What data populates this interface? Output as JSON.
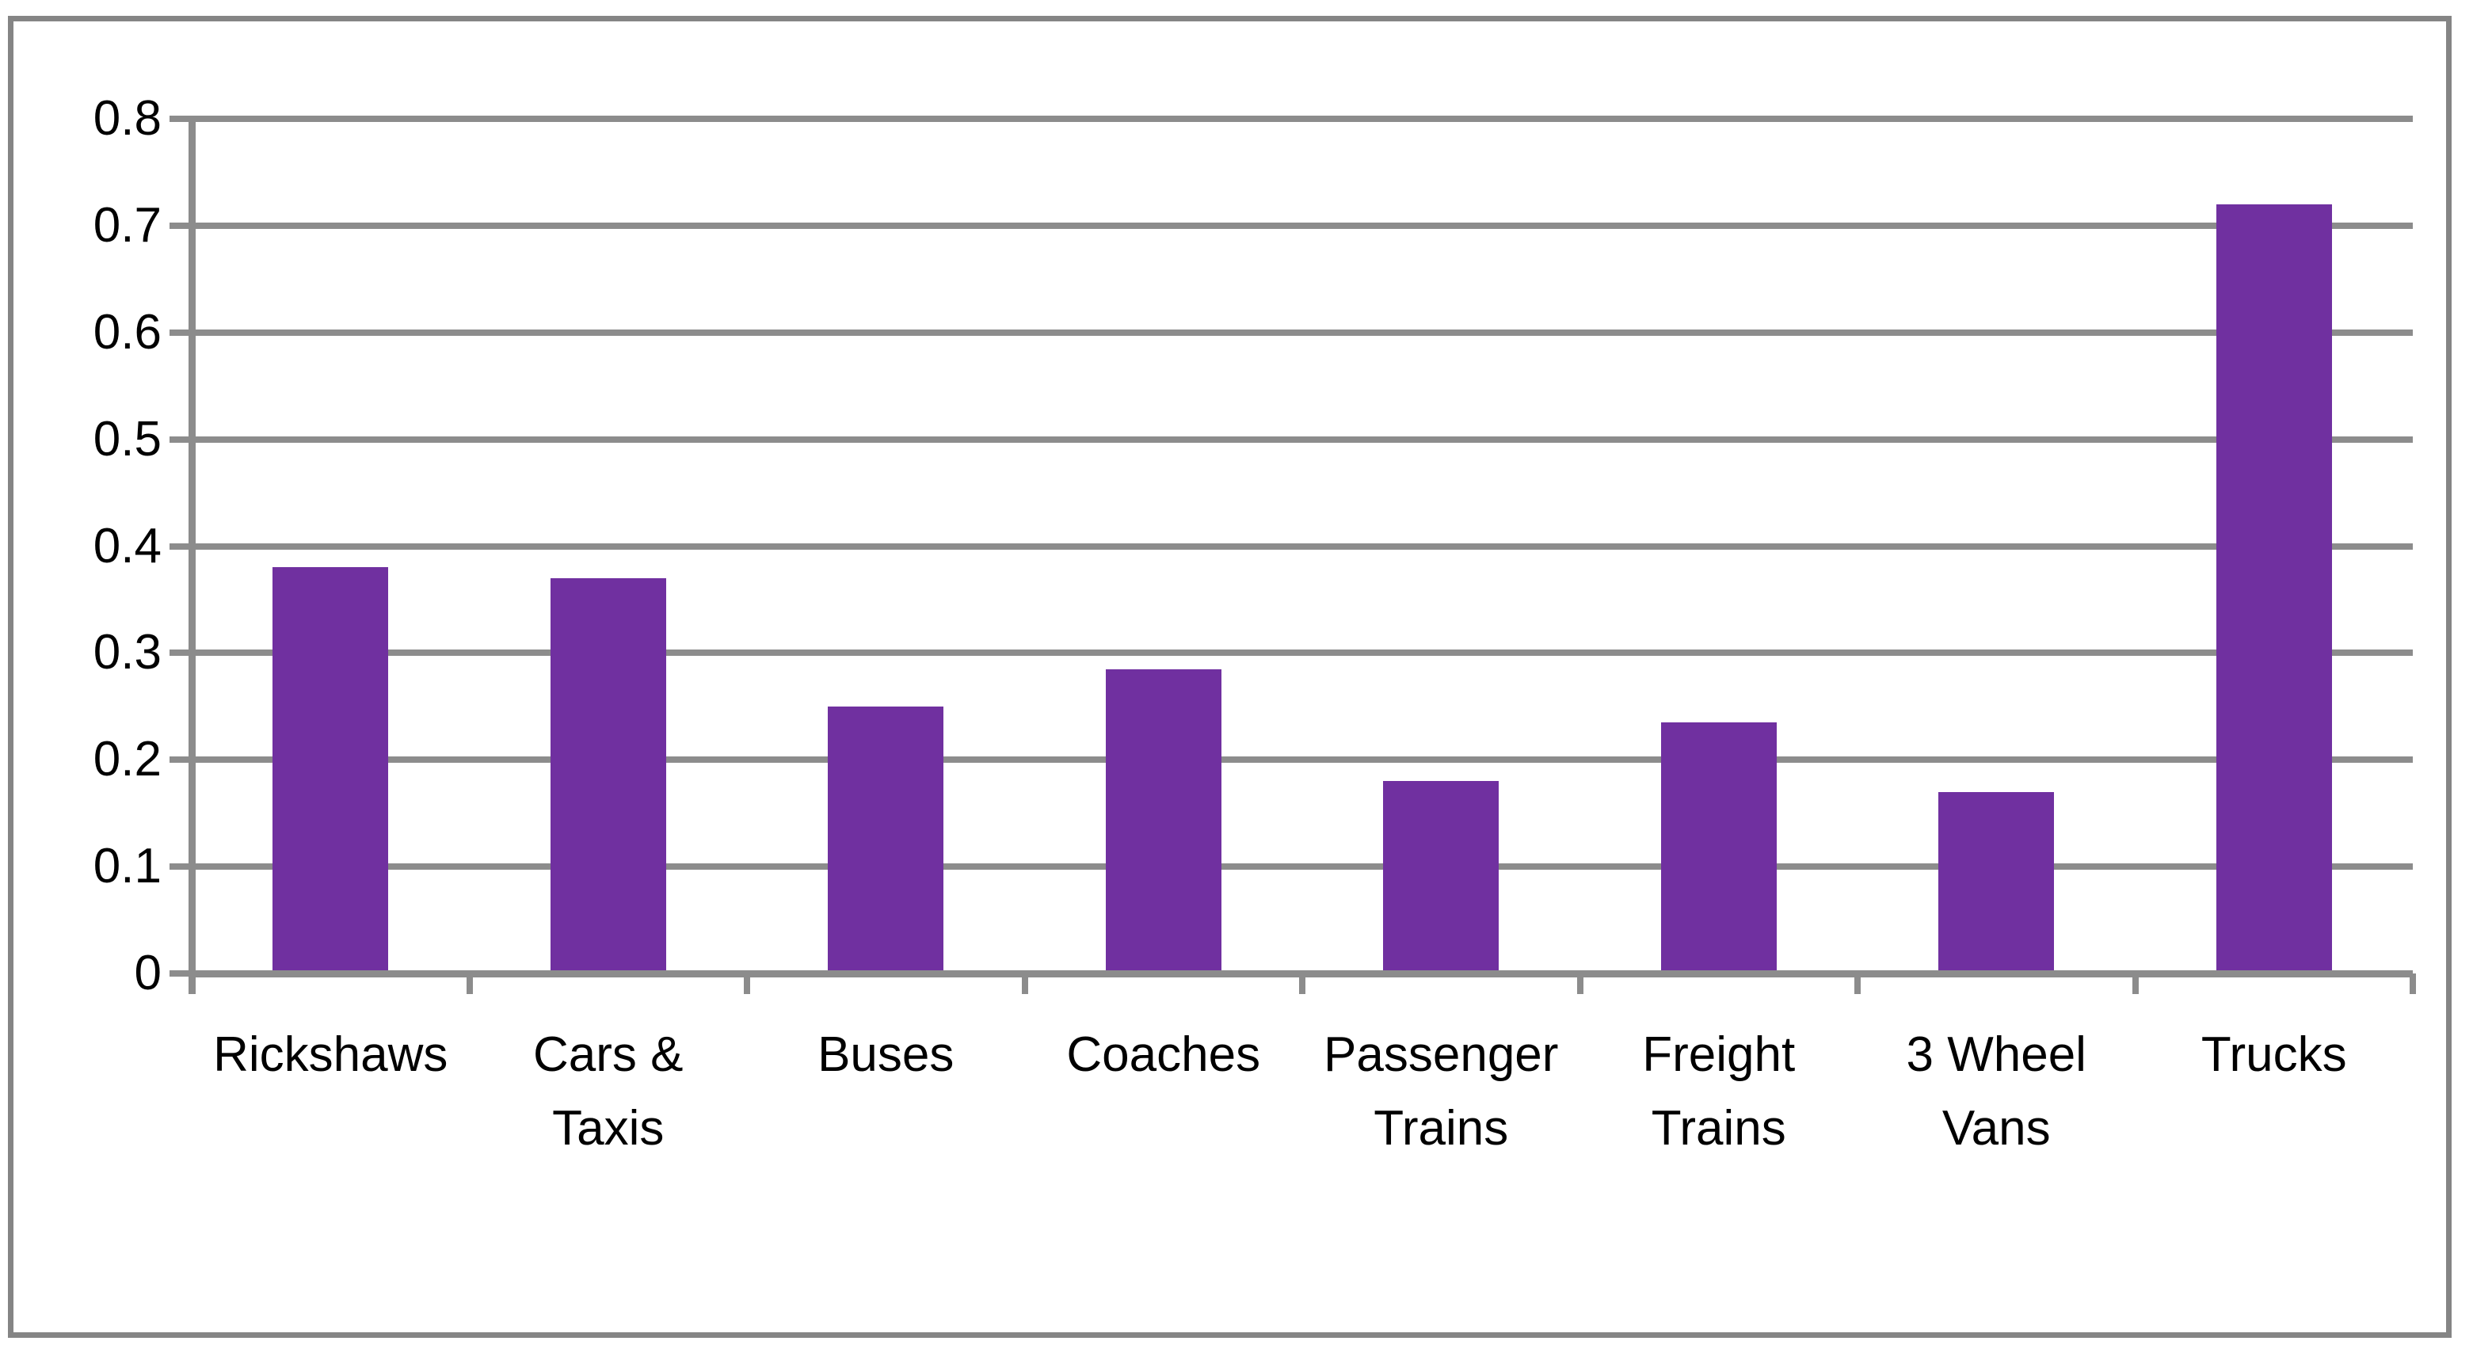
{
  "chart_data": {
    "type": "bar",
    "title": "",
    "xlabel": "",
    "ylabel": "",
    "categories": [
      "Rickshaws",
      "Cars & Taxis",
      "Buses",
      "Coaches",
      "Passenger Trains",
      "Freight Trains",
      "3 Wheel Vans",
      "Trucks"
    ],
    "values": [
      0.38,
      0.37,
      0.25,
      0.285,
      0.18,
      0.235,
      0.17,
      0.72
    ],
    "ylim": [
      0,
      0.8
    ],
    "ytick_step": 0.1,
    "yticks": [
      "0.8",
      "0.7",
      "0.6",
      "0.5",
      "0.4",
      "0.3",
      "0.2",
      "0.1",
      "0"
    ],
    "grid": "horizontal-major",
    "legend": "none",
    "bar_color": "#7030a0",
    "gridline_color": "#8c8c8c",
    "axis_color": "#8c8c8c",
    "frame_border_color": "#858585",
    "background_color": "#ffffff",
    "text_color": "#000000"
  }
}
